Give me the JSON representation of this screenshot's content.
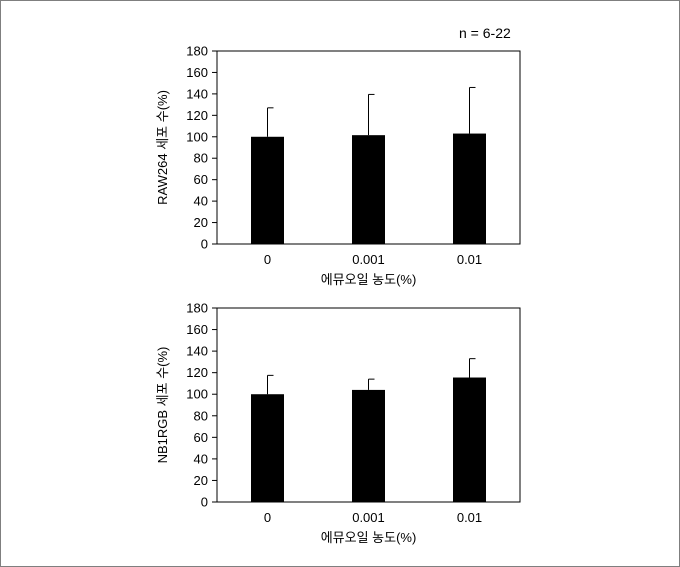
{
  "annotation": "n = 6-22",
  "colors": {
    "bar": "#000000",
    "axis": "#000000",
    "frame": "#7f7f7f"
  },
  "chart_data": [
    {
      "type": "bar",
      "categories": [
        "0",
        "0.001",
        "0.01"
      ],
      "values": [
        100,
        101.5,
        103
      ],
      "errors": [
        27,
        38,
        43
      ],
      "ylabel": "RAW264 세포 수(%)",
      "xlabel": "에뮤오일 농도(%)",
      "ylim": [
        0,
        180
      ],
      "yticks": [
        0,
        20,
        40,
        60,
        80,
        100,
        120,
        140,
        160,
        180
      ],
      "grid": false,
      "legend": "none"
    },
    {
      "type": "bar",
      "categories": [
        "0",
        "0.001",
        "0.01"
      ],
      "values": [
        100,
        104,
        115.5
      ],
      "errors": [
        17.5,
        10,
        17.5
      ],
      "ylabel": "NB1RGB 세포 수(%)",
      "xlabel": "에뮤오일 농도(%)",
      "ylim": [
        0,
        180
      ],
      "yticks": [
        0,
        20,
        40,
        60,
        80,
        100,
        120,
        140,
        160,
        180
      ],
      "grid": false,
      "legend": "none"
    }
  ]
}
